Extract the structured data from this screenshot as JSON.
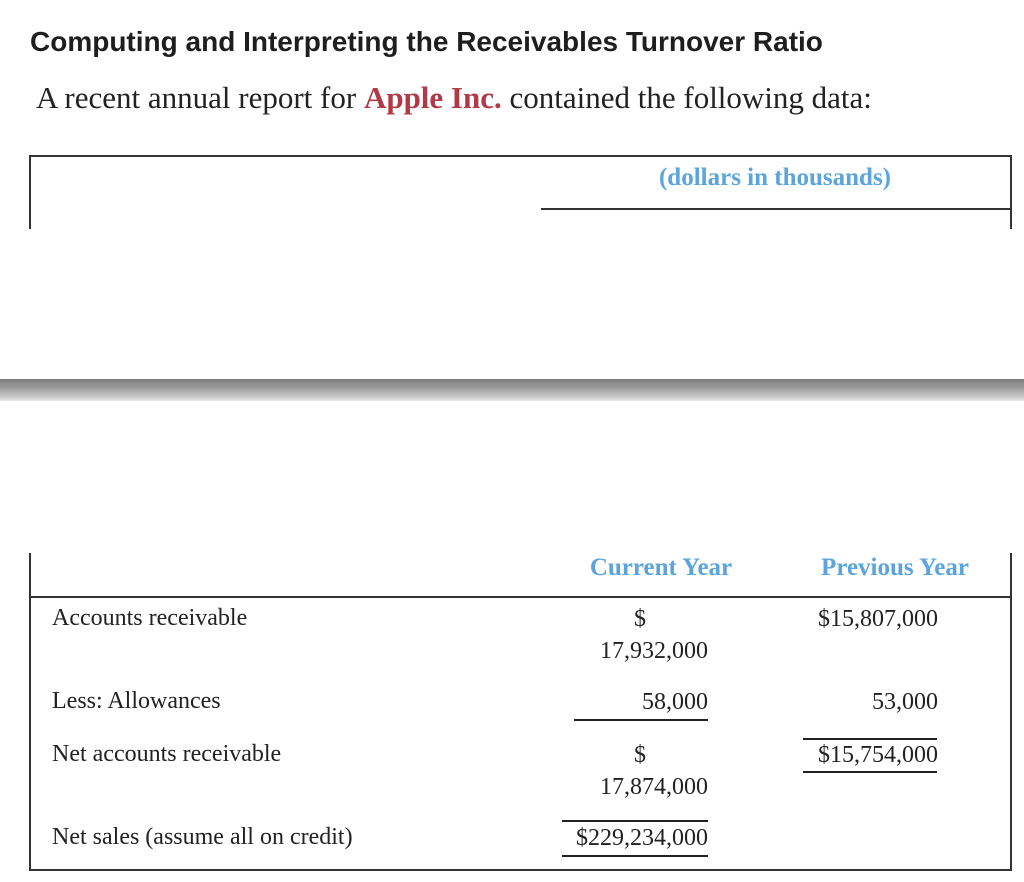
{
  "title": "Computing and Interpreting the Receivables Turnover Ratio",
  "intro": {
    "prefix": "A recent annual report for ",
    "company": "Apple Inc.",
    "suffix": " contained the following data:"
  },
  "units_label": "(dollars in thousands)",
  "columns": {
    "current": "Current Year",
    "previous": "Previous Year"
  },
  "rows": {
    "accounts_receivable": {
      "label": "Accounts receivable",
      "current_symbol": "$",
      "current_value": "17,932,000",
      "previous": "$15,807,000"
    },
    "allowances": {
      "label": "Less: Allowances",
      "current": "58,000",
      "previous": "53,000"
    },
    "net_ar": {
      "label": "Net accounts receivable",
      "current_symbol": "$",
      "current_value": "17,874,000",
      "previous": "$15,754,000"
    },
    "net_sales": {
      "label": "Net sales (assume all on credit)",
      "current": "$229,234,000"
    }
  },
  "colors": {
    "heading_blue": "#5ba4dc",
    "company_red": "#b03a48"
  }
}
